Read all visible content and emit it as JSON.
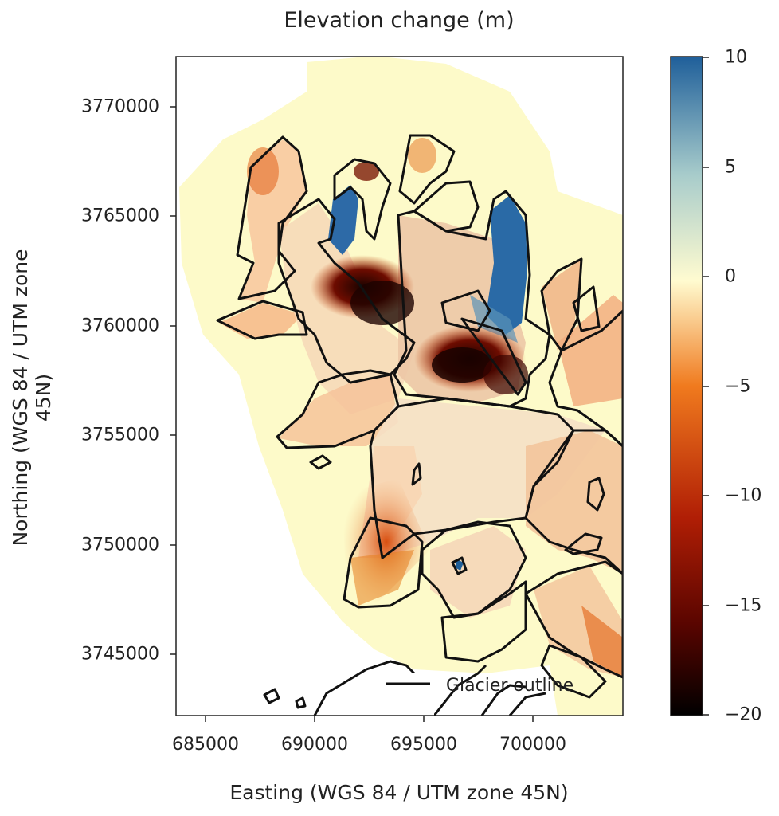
{
  "title": "Elevation change (m)",
  "x_axis": {
    "label": "Easting (WGS 84 / UTM zone 45N)",
    "ticks": [
      "685000",
      "690000",
      "695000",
      "700000"
    ],
    "range": [
      684000,
      704500
    ]
  },
  "y_axis": {
    "label": "Northing (WGS 84 / UTM zone 45N)",
    "ticks": [
      "3770000",
      "3765000",
      "3760000",
      "3755000",
      "3750000",
      "3745000"
    ],
    "range": [
      3742200,
      3772300
    ]
  },
  "colorbar": {
    "ticks": [
      "10",
      "5",
      "0",
      "−5",
      "−10",
      "−15",
      "−20"
    ],
    "range": [
      -20,
      10
    ],
    "colors": [
      "#000000",
      "#7a0a00",
      "#c42a08",
      "#f07a1e",
      "#f9d7a8",
      "#fffbd0",
      "#9dc6c8",
      "#1f5f9a"
    ]
  },
  "legend": {
    "label": "Glacier outline",
    "position": "bottom-right"
  }
}
